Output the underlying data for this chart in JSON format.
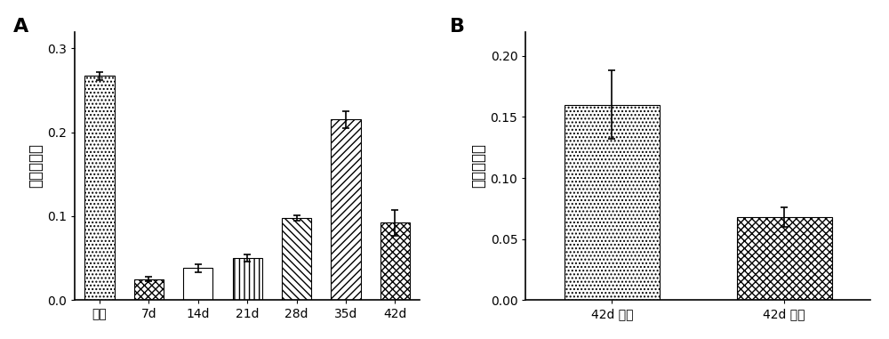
{
  "panel_A": {
    "categories": [
      "尾蚊",
      "7d",
      "14d",
      "21d",
      "28d",
      "35d",
      "42d"
    ],
    "values": [
      0.267,
      0.025,
      0.038,
      0.05,
      0.098,
      0.215,
      0.092
    ],
    "errors": [
      0.005,
      0.003,
      0.005,
      0.004,
      0.003,
      0.01,
      0.015
    ],
    "ylabel": "相对表达量",
    "ylim": [
      0,
      0.32
    ],
    "yticks": [
      0.0,
      0.1,
      0.2,
      0.3
    ],
    "label": "A"
  },
  "panel_B": {
    "categories": [
      "42d 雌虫",
      "42d 雄虫"
    ],
    "values": [
      0.16,
      0.068
    ],
    "errors": [
      0.028,
      0.008
    ],
    "ylabel": "相对表达量",
    "ylim": [
      0,
      0.22
    ],
    "yticks": [
      0.0,
      0.05,
      0.1,
      0.15,
      0.2
    ],
    "label": "B"
  },
  "bg_color": "#ffffff",
  "bar_edge_color": "#000000",
  "error_color": "#000000",
  "font_size_label": 14,
  "font_size_tick": 10,
  "font_size_ylabel": 12
}
